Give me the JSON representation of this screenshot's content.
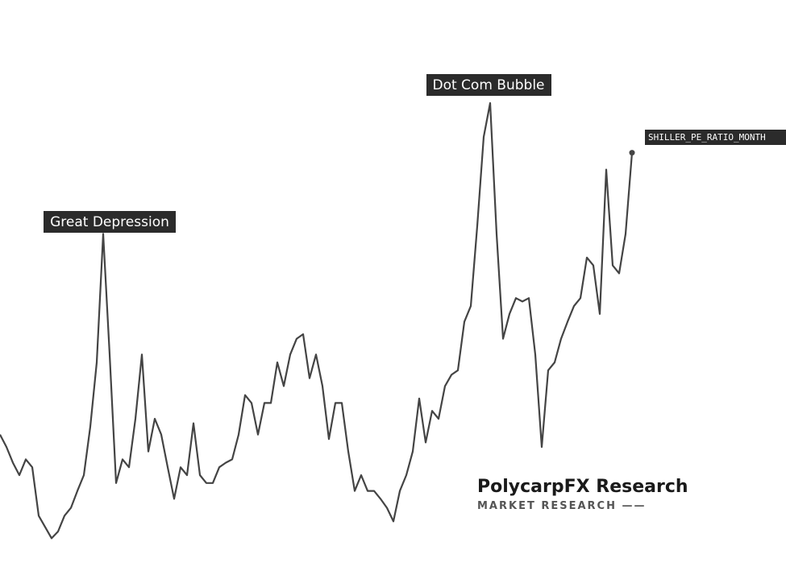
{
  "chart_data": {
    "type": "line",
    "name": "SHILLER_PE_RATIO_MONTH",
    "color": "#444444",
    "ylim": [
      0,
      50
    ],
    "values": [
      14.8,
      13.7,
      12.3,
      11.2,
      12.6,
      11.9,
      7.6,
      6.6,
      5.6,
      6.2,
      7.6,
      8.3,
      9.8,
      11.2,
      15.5,
      21.2,
      32.6,
      21.9,
      10.5,
      12.6,
      11.9,
      16.2,
      21.9,
      13.3,
      16.2,
      14.8,
      11.9,
      9.1,
      11.9,
      11.2,
      15.8,
      11.2,
      10.5,
      10.5,
      11.9,
      12.3,
      12.6,
      14.8,
      18.3,
      17.6,
      14.8,
      17.6,
      17.6,
      21.2,
      19.1,
      21.9,
      23.3,
      23.7,
      19.8,
      21.9,
      19.1,
      14.4,
      17.6,
      17.6,
      13.3,
      9.8,
      11.2,
      9.8,
      9.8,
      9.1,
      8.3,
      7.1,
      9.8,
      11.2,
      13.3,
      18.0,
      14.1,
      16.9,
      16.2,
      19.1,
      20.1,
      20.5,
      24.8,
      26.2,
      33.3,
      41.2,
      44.2,
      32.6,
      23.3,
      25.5,
      26.9,
      26.6,
      26.9,
      21.9,
      13.7,
      20.5,
      21.2,
      23.3,
      24.8,
      26.2,
      26.9,
      30.5,
      29.8,
      25.5,
      38.3,
      29.8,
      29.1,
      32.6,
      39.8
    ],
    "annotations": [
      "Great Depression",
      "Dot Com Bubble"
    ],
    "watermark": {
      "title": "PolycarpFX Research",
      "subtitle": "MARKET RESEARCH ——"
    }
  }
}
